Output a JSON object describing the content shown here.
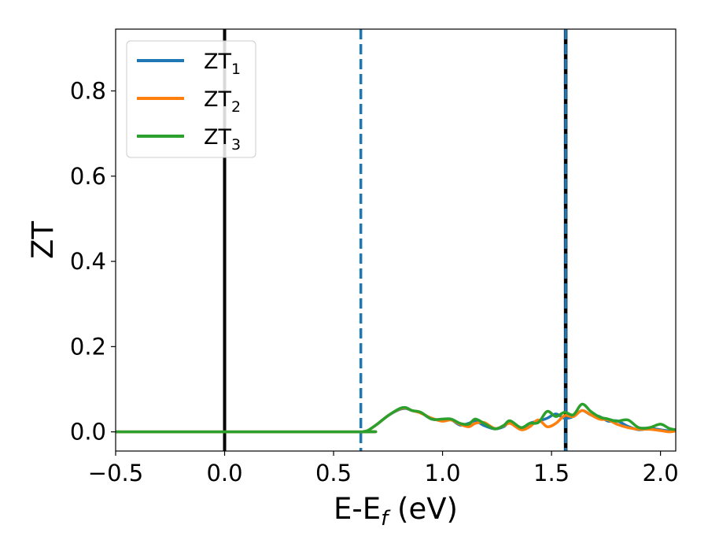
{
  "chart_data": {
    "type": "line",
    "xlabel": {
      "main": "E-E",
      "sub": "f",
      "unit": " (eV)"
    },
    "ylabel": "ZT",
    "xlim": [
      -0.5,
      2.07
    ],
    "ylim": [
      -0.045,
      0.945
    ],
    "xticks": [
      -0.5,
      0.0,
      0.5,
      1.0,
      1.5,
      2.0
    ],
    "xtick_labels": [
      "−0.5",
      "0.0",
      "0.5",
      "1.0",
      "1.5",
      "2.0"
    ],
    "yticks": [
      0.0,
      0.2,
      0.4,
      0.6,
      0.8
    ],
    "ytick_labels": [
      "0.0",
      "0.2",
      "0.4",
      "0.6",
      "0.8"
    ],
    "grid": false,
    "legend_position": "top-left",
    "vlines": [
      {
        "x": 0.0,
        "style": "solid",
        "color": "#000000"
      },
      {
        "x": 0.625,
        "style": "dashed",
        "color": "#1f77b4"
      },
      {
        "x": 1.565,
        "style": "dashed",
        "color": "#1f77b4",
        "overlay": "#000000"
      }
    ],
    "series": [
      {
        "name": "ZT",
        "sub": "1",
        "color": "#1f77b4",
        "x": [
          -0.5,
          0.6,
          0.64,
          0.66,
          0.7,
          0.75,
          0.8,
          0.83,
          0.86,
          0.9,
          0.95,
          1.0,
          1.04,
          1.08,
          1.12,
          1.15,
          1.19,
          1.24,
          1.28,
          1.31,
          1.36,
          1.4,
          1.44,
          1.48,
          1.52,
          1.56,
          1.6,
          1.64,
          1.68,
          1.72,
          1.76,
          1.8,
          1.85,
          1.9,
          1.95,
          2.0,
          2.04,
          2.07
        ],
        "y": [
          0.0,
          0.0,
          0.001,
          0.004,
          0.018,
          0.038,
          0.052,
          0.055,
          0.05,
          0.045,
          0.03,
          0.028,
          0.028,
          0.016,
          0.02,
          0.026,
          0.015,
          0.007,
          0.012,
          0.022,
          0.006,
          0.02,
          0.025,
          0.032,
          0.042,
          0.032,
          0.036,
          0.05,
          0.04,
          0.036,
          0.025,
          0.026,
          0.013,
          0.005,
          0.008,
          0.005,
          0.002,
          0.002
        ]
      },
      {
        "name": "ZT",
        "sub": "2",
        "color": "#ff7f0e",
        "x": [
          -0.5,
          0.6,
          0.64,
          0.66,
          0.7,
          0.75,
          0.8,
          0.83,
          0.86,
          0.9,
          0.95,
          1.0,
          1.04,
          1.08,
          1.12,
          1.15,
          1.19,
          1.24,
          1.28,
          1.31,
          1.36,
          1.4,
          1.44,
          1.48,
          1.52,
          1.56,
          1.6,
          1.64,
          1.68,
          1.72,
          1.76,
          1.8,
          1.85,
          1.9,
          1.95,
          2.0,
          2.04,
          2.07
        ],
        "y": [
          0.0,
          0.0,
          0.001,
          0.004,
          0.018,
          0.038,
          0.053,
          0.056,
          0.05,
          0.044,
          0.032,
          0.025,
          0.028,
          0.018,
          0.012,
          0.02,
          0.022,
          0.008,
          0.014,
          0.02,
          0.005,
          0.012,
          0.028,
          0.012,
          0.02,
          0.038,
          0.036,
          0.05,
          0.04,
          0.03,
          0.028,
          0.018,
          0.01,
          0.006,
          0.006,
          0.003,
          0.0,
          0.002
        ]
      },
      {
        "name": "ZT",
        "sub": "3",
        "color": "#2ca02c",
        "x": [
          -0.5,
          0.6,
          0.64,
          0.66,
          0.7,
          0.75,
          0.8,
          0.83,
          0.86,
          0.9,
          0.95,
          1.0,
          1.04,
          1.08,
          1.12,
          1.15,
          1.19,
          1.24,
          1.28,
          1.31,
          1.36,
          1.4,
          1.44,
          1.48,
          1.52,
          1.56,
          1.6,
          1.64,
          1.68,
          1.72,
          1.76,
          1.8,
          1.85,
          1.9,
          1.95,
          2.0,
          2.04,
          2.07
        ],
        "y": [
          0.0,
          0.0,
          0.001,
          0.004,
          0.018,
          0.038,
          0.054,
          0.057,
          0.05,
          0.046,
          0.03,
          0.03,
          0.03,
          0.02,
          0.018,
          0.03,
          0.02,
          0.007,
          0.015,
          0.026,
          0.01,
          0.02,
          0.022,
          0.048,
          0.036,
          0.046,
          0.04,
          0.065,
          0.048,
          0.035,
          0.03,
          0.025,
          0.028,
          0.01,
          0.01,
          0.018,
          0.008,
          0.005
        ]
      }
    ]
  }
}
